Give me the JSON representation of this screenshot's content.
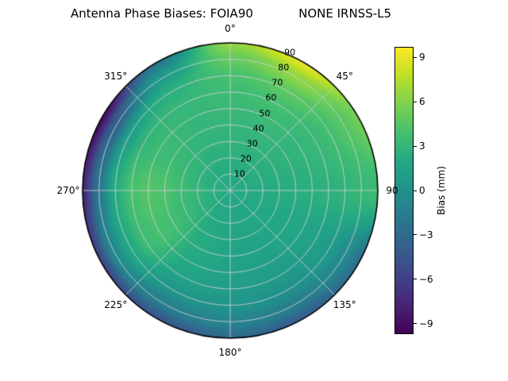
{
  "figure": {
    "background": "#ffffff"
  },
  "chart_data": {
    "type": "heatmap",
    "projection": "polar",
    "title": "Antenna Phase Biases: FOIA90            NONE IRNSS-L5",
    "angular_ticks_deg": [
      0,
      45,
      90,
      135,
      180,
      225,
      270,
      315
    ],
    "angular_tick_labels": [
      "0°",
      "45°",
      "90",
      "135°",
      "180°",
      "225°",
      "270°",
      "315°"
    ],
    "radial_ticks_deg": [
      10,
      20,
      30,
      40,
      50,
      60,
      70,
      80,
      90
    ],
    "radial_range": [
      0,
      90
    ],
    "radial_label_angle_deg": 22.5,
    "grid": true,
    "colormap": "viridis",
    "vmin": -9.7,
    "vmax": 9.7,
    "azimuth_deg": [
      0,
      30,
      60,
      90,
      120,
      150,
      180,
      210,
      240,
      270,
      300,
      330
    ],
    "zenith_deg": [
      0,
      10,
      20,
      30,
      40,
      50,
      60,
      70,
      80,
      90
    ],
    "values": [
      [
        2.0,
        2.2,
        2.5,
        2.8,
        3.0,
        3.2,
        3.6,
        4.0,
        5.0,
        6.5
      ],
      [
        2.0,
        2.2,
        2.5,
        2.8,
        3.1,
        3.4,
        3.9,
        4.8,
        6.5,
        9.0
      ],
      [
        2.0,
        2.2,
        2.4,
        2.6,
        2.8,
        3.0,
        3.3,
        3.8,
        4.6,
        5.5
      ],
      [
        2.0,
        2.1,
        2.2,
        2.3,
        2.4,
        2.5,
        2.7,
        2.9,
        3.2,
        3.5
      ],
      [
        2.0,
        2.0,
        2.0,
        1.9,
        1.8,
        1.6,
        1.3,
        0.8,
        -0.5,
        -2.5
      ],
      [
        2.0,
        1.9,
        1.8,
        1.6,
        1.4,
        1.2,
        0.8,
        0.0,
        -1.5,
        -4.0
      ],
      [
        2.0,
        1.9,
        1.8,
        1.7,
        1.5,
        1.3,
        1.0,
        0.3,
        -1.0,
        -3.0
      ],
      [
        2.0,
        2.0,
        2.1,
        2.2,
        2.2,
        2.0,
        1.5,
        0.5,
        -1.5,
        -4.5
      ],
      [
        2.0,
        2.3,
        2.8,
        3.3,
        3.8,
        4.0,
        3.6,
        2.0,
        -0.5,
        -5.5
      ],
      [
        2.0,
        2.4,
        3.0,
        3.6,
        4.2,
        4.5,
        4.0,
        2.2,
        -2.0,
        -7.5
      ],
      [
        2.0,
        2.3,
        2.8,
        3.2,
        3.5,
        3.5,
        3.0,
        1.2,
        -3.5,
        -9.0
      ],
      [
        2.0,
        2.2,
        2.5,
        2.8,
        3.0,
        3.1,
        3.1,
        2.6,
        1.0,
        -2.0
      ]
    ],
    "colorbar": {
      "label": "Bias (mm)",
      "position": "right",
      "ticks": [
        9,
        6,
        3,
        0,
        -3,
        -6,
        -9
      ],
      "tick_labels": [
        "9",
        "6",
        "3",
        "0",
        "−3",
        "−6",
        "−9"
      ]
    },
    "colormap_stops": [
      "#440154",
      "#482475",
      "#414487",
      "#355f8d",
      "#2a788e",
      "#21918c",
      "#22a884",
      "#44bf70",
      "#7ad151",
      "#bddf26",
      "#fde725"
    ]
  }
}
